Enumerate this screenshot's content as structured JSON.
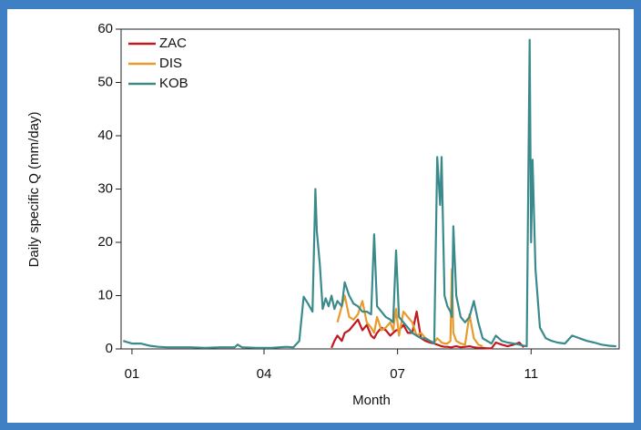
{
  "chart_data": {
    "type": "line",
    "y_label": "Daily specific Q (mm/day)",
    "x_label": "Month",
    "x": [
      -6,
      0,
      6,
      12,
      18,
      24,
      30,
      40,
      50,
      60,
      70,
      72,
      75,
      85,
      95,
      105,
      110,
      114,
      117,
      120,
      123,
      125,
      126,
      128,
      130,
      132,
      134,
      136,
      138,
      140,
      143,
      145,
      148,
      151,
      154,
      157,
      160,
      163,
      165,
      167,
      170,
      173,
      176,
      178,
      180,
      182,
      185,
      188,
      191,
      194,
      197,
      200,
      203,
      206,
      208,
      210,
      211,
      213,
      215,
      217,
      218,
      219,
      221,
      224,
      227,
      230,
      233,
      236,
      239,
      242,
      245,
      248,
      252,
      256,
      260,
      264,
      267,
      269,
      271,
      272,
      273,
      275,
      278,
      282,
      286,
      290,
      295,
      300,
      305,
      310,
      315,
      320,
      325,
      330
    ],
    "series": [
      {
        "name": "ZAC",
        "color": "#c0191f",
        "values": [
          null,
          null,
          null,
          null,
          null,
          null,
          null,
          null,
          null,
          null,
          null,
          null,
          null,
          null,
          null,
          null,
          null,
          null,
          null,
          null,
          null,
          null,
          null,
          null,
          null,
          null,
          null,
          0.2,
          1.5,
          2.5,
          1.5,
          3,
          3.5,
          4.5,
          5.5,
          3.5,
          4.5,
          2.5,
          2,
          3,
          4,
          3.5,
          2.5,
          3,
          3.5,
          3.5,
          4.5,
          3,
          3,
          7,
          2,
          1.5,
          1.2,
          1,
          0.8,
          0.6,
          0.5,
          0.4,
          0.4,
          0.3,
          0.3,
          0.4,
          0.5,
          0.3,
          0.4,
          0.5,
          0.3,
          0.2,
          0.2,
          0.1,
          0.1,
          1.2,
          0.8,
          0.5,
          0.8,
          1.2,
          0.3,
          null,
          null,
          null,
          null,
          null,
          null,
          null,
          null,
          null,
          null,
          null,
          null,
          null,
          null,
          null,
          null,
          null
        ]
      },
      {
        "name": "DIS",
        "color": "#e89a2c",
        "values": [
          null,
          null,
          null,
          null,
          null,
          null,
          null,
          null,
          null,
          null,
          null,
          null,
          null,
          null,
          null,
          null,
          null,
          null,
          null,
          null,
          null,
          null,
          null,
          null,
          null,
          null,
          null,
          null,
          null,
          5,
          8,
          10,
          6,
          5.5,
          6.5,
          9,
          5,
          4,
          3,
          6,
          3.5,
          4,
          5,
          3.5,
          7.5,
          2.5,
          7,
          6,
          5,
          2.5,
          3,
          2,
          1.5,
          1.2,
          2,
          1.5,
          1.2,
          1,
          1,
          1.5,
          15,
          3,
          1.5,
          1,
          0.8,
          6.5,
          2,
          0.8,
          0.5,
          null,
          null,
          null,
          null,
          null,
          null,
          null,
          null,
          null,
          null,
          null,
          null,
          null,
          null,
          null,
          null,
          null,
          null,
          null,
          null,
          null,
          null,
          null,
          null,
          null
        ]
      },
      {
        "name": "KOB",
        "color": "#3a8a8c",
        "values": [
          1.5,
          1,
          1,
          0.6,
          0.4,
          0.3,
          0.3,
          0.3,
          0.2,
          0.3,
          0.3,
          0.8,
          0.3,
          0.2,
          0.2,
          0.4,
          0.3,
          1.5,
          9.8,
          8.5,
          7,
          30,
          22,
          16,
          7.5,
          9.5,
          8,
          10,
          7.5,
          9,
          8,
          12.5,
          10,
          8.5,
          8,
          7,
          7,
          6.5,
          21.5,
          8,
          7,
          6,
          5.5,
          5,
          18.5,
          6,
          5,
          4,
          3,
          2.5,
          2,
          2,
          1.5,
          1,
          36,
          27,
          36,
          10,
          8,
          7,
          6,
          23,
          10,
          6,
          5,
          6,
          9,
          5,
          2,
          1.5,
          1,
          2.5,
          1.5,
          1.2,
          1,
          0.8,
          0.6,
          0.5,
          58,
          20,
          35.5,
          15,
          4,
          2,
          1.5,
          1.2,
          1,
          2.5,
          2,
          1.5,
          1.2,
          0.8,
          0.6,
          0.5
        ]
      }
    ],
    "xlim": [
      -7.4,
      332
    ],
    "xticks": [
      {
        "value": 0,
        "label": "01"
      },
      {
        "value": 90,
        "label": "04"
      },
      {
        "value": 181,
        "label": "07"
      },
      {
        "value": 272,
        "label": "11"
      }
    ],
    "ylim": [
      0,
      60
    ],
    "yticks": [
      0,
      10,
      20,
      30,
      40,
      50,
      60
    ],
    "legend": "top-left"
  }
}
